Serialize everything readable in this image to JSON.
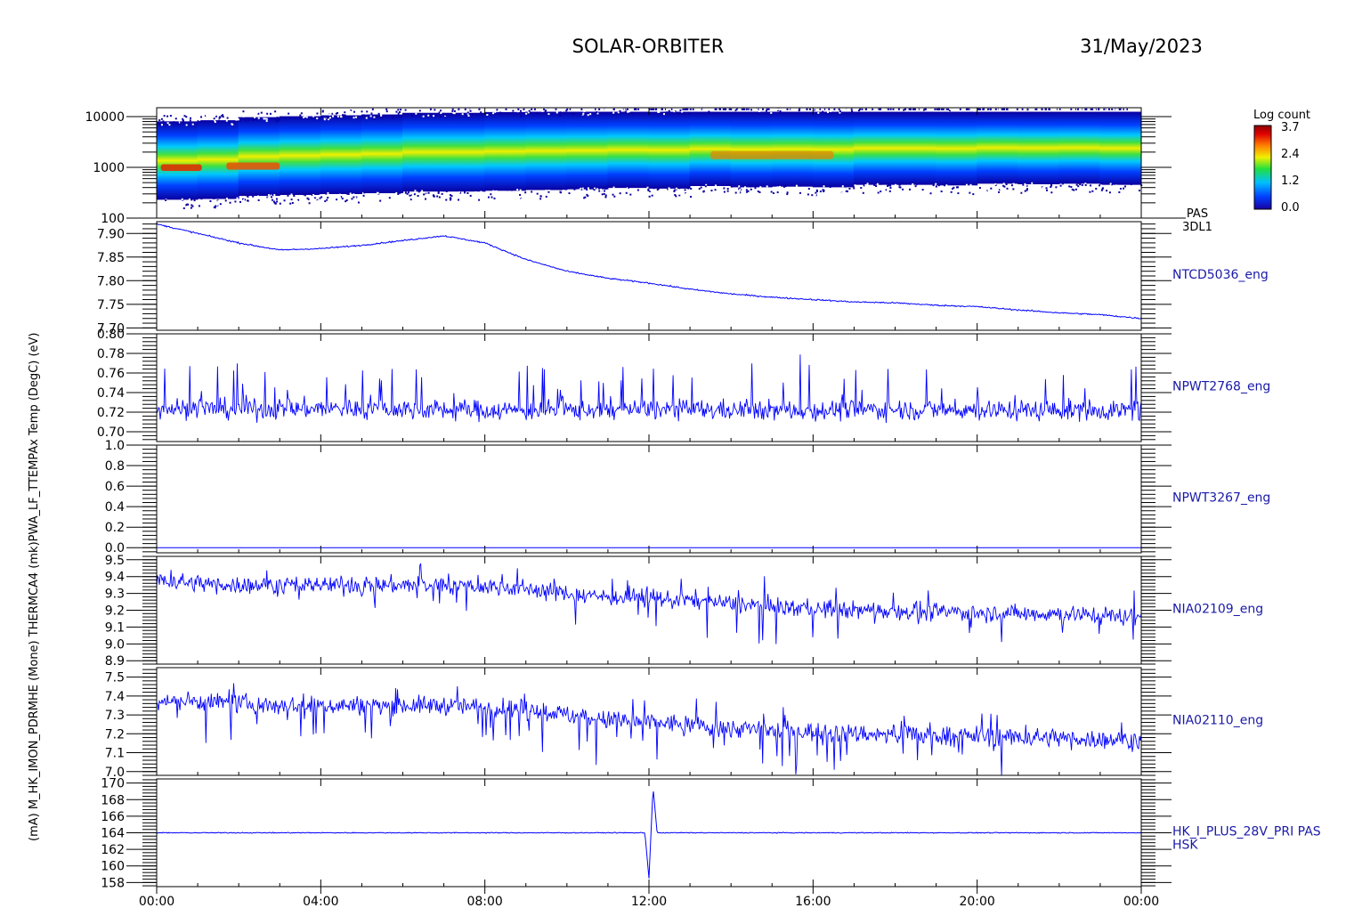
{
  "header": {
    "mission": "SOLAR-ORBITER",
    "date": "31/May/2023"
  },
  "colors": {
    "trace": "#0000ff",
    "label_blue": "#1a1aa8",
    "colorbar": [
      "#1a00a0",
      "#0040ff",
      "#00c0ff",
      "#20e040",
      "#f0f000",
      "#ff8000",
      "#e00000",
      "#900000"
    ]
  },
  "colorbar": {
    "title": "Log count",
    "ticks": [
      "3.7",
      "2.4",
      "1.2",
      "0.0"
    ]
  },
  "x_axis": {
    "ticks": [
      "00:00",
      "04:00",
      "08:00",
      "12:00",
      "16:00",
      "20:00",
      "00:00"
    ]
  },
  "left_label": "(mA) M_HK_IMON_PDRMHE (Mone) THERMCA4 (mk)PWA_LF_TTEMPAx Temp (DegC) (eV)",
  "chart_data": [
    {
      "type": "heatmap",
      "title": "",
      "ylabel": "(eV)",
      "yscale": "log",
      "ylim": [
        100,
        15000
      ],
      "yticks": [
        "10000",
        "1000",
        "100"
      ],
      "right_label": [
        "PAS",
        "3DL1"
      ],
      "colorbar_label": "Log count",
      "zlim": [
        0.0,
        3.7
      ],
      "peak_energy_eV": [
        950,
        1000,
        1150,
        1200,
        1250,
        1300,
        1400,
        1400,
        1450,
        1500,
        1550,
        1650,
        1600,
        1800,
        1700,
        1750,
        1700,
        1900,
        1900,
        1850,
        2000,
        1950,
        2000,
        1900
      ]
    },
    {
      "type": "line",
      "series": [
        {
          "name": "NTCD5036_eng",
          "x_hours": [
            0,
            1,
            2,
            3,
            4,
            5,
            6,
            7,
            8,
            9,
            10,
            11,
            12,
            13,
            14,
            15,
            16,
            17,
            18,
            19,
            20,
            21,
            22,
            23,
            24
          ],
          "values": [
            7.92,
            7.9,
            7.88,
            7.865,
            7.868,
            7.875,
            7.885,
            7.895,
            7.88,
            7.845,
            7.82,
            7.805,
            7.795,
            7.782,
            7.772,
            7.765,
            7.76,
            7.755,
            7.753,
            7.748,
            7.745,
            7.738,
            7.732,
            7.728,
            7.72
          ]
        }
      ],
      "ylim": [
        7.695,
        7.925
      ],
      "yticks": [
        "7.90",
        "7.85",
        "7.80",
        "7.75",
        "7.70"
      ]
    },
    {
      "type": "line",
      "series": [
        {
          "name": "NPWT2768_eng",
          "x_hours": [
            0,
            2,
            4,
            6,
            8,
            10,
            12,
            14,
            16,
            18,
            20,
            22,
            24
          ],
          "values": [
            0.724,
            0.723,
            0.724,
            0.723,
            0.722,
            0.722,
            0.723,
            0.722,
            0.722,
            0.723,
            0.722,
            0.722,
            0.722
          ]
        }
      ],
      "ylim": [
        0.69,
        0.8
      ],
      "yticks": [
        "0.80",
        "0.78",
        "0.76",
        "0.74",
        "0.72",
        "0.70"
      ]
    },
    {
      "type": "line",
      "series": [
        {
          "name": "NPWT3267_eng",
          "x_hours": [
            0,
            6,
            12,
            18,
            24
          ],
          "values": [
            0.0,
            0.0,
            0.0,
            0.0,
            0.0
          ]
        }
      ],
      "ylim": [
        -0.05,
        1.0
      ],
      "yticks": [
        "1.0",
        "0.8",
        "0.6",
        "0.4",
        "0.2",
        "0.0"
      ]
    },
    {
      "type": "line",
      "series": [
        {
          "name": "NIA02109_eng",
          "x_hours": [
            0,
            1,
            2,
            3,
            4,
            5,
            6,
            7,
            8,
            9,
            10,
            11,
            12,
            13,
            14,
            15,
            16,
            17,
            18,
            19,
            20,
            21,
            22,
            23,
            24
          ],
          "values": [
            9.38,
            9.36,
            9.35,
            9.35,
            9.35,
            9.35,
            9.35,
            9.35,
            9.34,
            9.33,
            9.3,
            9.28,
            9.27,
            9.26,
            9.24,
            9.22,
            9.21,
            9.2,
            9.2,
            9.19,
            9.19,
            9.18,
            9.18,
            9.17,
            9.16
          ]
        }
      ],
      "ylim": [
        8.88,
        9.52
      ],
      "yticks": [
        "9.5",
        "9.4",
        "9.3",
        "9.2",
        "9.1",
        "9.0",
        "8.9"
      ]
    },
    {
      "type": "line",
      "series": [
        {
          "name": "NIA02110_eng",
          "x_hours": [
            0,
            1,
            2,
            3,
            4,
            5,
            6,
            7,
            8,
            9,
            10,
            11,
            12,
            13,
            14,
            15,
            16,
            17,
            18,
            19,
            20,
            21,
            22,
            23,
            24
          ],
          "values": [
            7.38,
            7.37,
            7.36,
            7.35,
            7.35,
            7.35,
            7.35,
            7.35,
            7.34,
            7.33,
            7.3,
            7.27,
            7.26,
            7.25,
            7.23,
            7.22,
            7.21,
            7.2,
            7.2,
            7.19,
            7.19,
            7.18,
            7.18,
            7.17,
            7.17
          ]
        }
      ],
      "ylim": [
        6.98,
        7.55
      ],
      "yticks": [
        "7.5",
        "7.4",
        "7.3",
        "7.2",
        "7.1",
        "7.0"
      ]
    },
    {
      "type": "line",
      "series": [
        {
          "name": "HK_I_PLUS_28V_PRI PAS",
          "x_hours": [
            0,
            4,
            8,
            11.9,
            12.0,
            12.1,
            12.2,
            16,
            20,
            24
          ],
          "values": [
            164.0,
            164.0,
            164.0,
            164.0,
            158.5,
            169.5,
            164.0,
            164.0,
            164.0,
            164.0
          ]
        }
      ],
      "right_label_extra": "HSK",
      "ylim": [
        157.5,
        170.5
      ],
      "yticks": [
        "170",
        "168",
        "166",
        "164",
        "162",
        "160",
        "158"
      ]
    }
  ]
}
